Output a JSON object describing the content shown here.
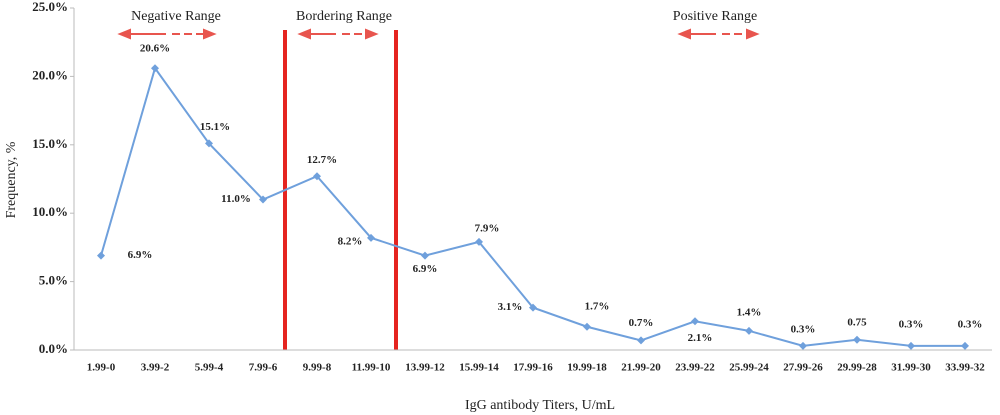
{
  "chart_data": {
    "type": "line",
    "x_label": "IgG antibody Titers, U/mL",
    "y_label": "Frequency, %",
    "annotations": [
      "Negative Range",
      "Bordering Range",
      "Positive Range"
    ],
    "categories": [
      "1.99-0",
      "3.99-2",
      "5.99-4",
      "7.99-6",
      "9.99-8",
      "11.99-10",
      "13.99-12",
      "15.99-14",
      "17.99-16",
      "19.99-18",
      "21.99-20",
      "23.99-22",
      "25.99-24",
      "27.99-26",
      "29.99-28",
      "31.99-30",
      "33.99-32"
    ],
    "series": [
      {
        "color": "#6fa0dc",
        "values": [
          6.9,
          20.6,
          15.1,
          11.0,
          12.7,
          8.2,
          6.9,
          7.9,
          3.1,
          1.7,
          0.7,
          2.1,
          1.4,
          0.3,
          0.75,
          0.3,
          0.3
        ],
        "value_labels": [
          "6.9%",
          "20.6%",
          "15.1%",
          "11.0%",
          "12.7%",
          "8.2%",
          "6.9%",
          "7.9%",
          "3.1%",
          "1.7%",
          "0.7%",
          "2.1%",
          "1.4%",
          "0.3%",
          "0.75",
          "0.3%",
          "0.3%"
        ]
      }
    ],
    "ylim": [
      0,
      25
    ],
    "yticks": [
      {
        "value": 0,
        "label": "0.0%"
      },
      {
        "value": 5,
        "label": "5.0%"
      },
      {
        "value": 10,
        "label": "10.0%"
      },
      {
        "value": 15,
        "label": "15.0%"
      },
      {
        "value": 20,
        "label": "20.0%"
      },
      {
        "value": 25,
        "label": "25.0%"
      }
    ],
    "grid": false
  }
}
